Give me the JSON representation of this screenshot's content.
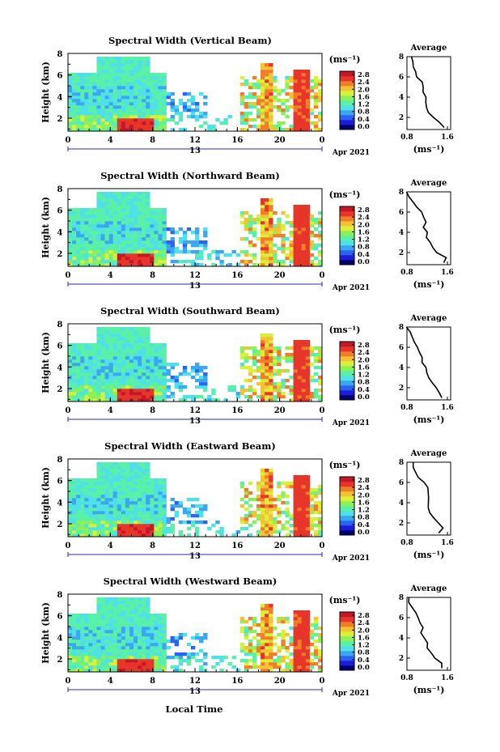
{
  "figure": {
    "xlabel": "Local Time",
    "date_label": "Apr 2021",
    "day_label": "13",
    "colorbar_unit": "(ms⁻¹)",
    "avg_title": "Average",
    "avg_xlabel": "(ms⁻¹)"
  },
  "chart_data": [
    {
      "type": "heatmap",
      "title": "Spectral Width (Vertical Beam)",
      "ylabel": "Height (km)",
      "x_ticks": [
        "0",
        "4",
        "8",
        "12",
        "16",
        "20",
        "0"
      ],
      "y_ticks": [
        "2",
        "4",
        "6",
        "8"
      ],
      "xlim": [
        0,
        24
      ],
      "ylim": [
        0.8,
        8
      ],
      "colorbar_ticks": [
        "0.0",
        "0.4",
        "0.8",
        "1.2",
        "1.6",
        "2.0",
        "2.4",
        "2.8"
      ],
      "avg_profile": {
        "x_ticks": [
          "0.8",
          "1.6"
        ],
        "xlim": [
          0.8,
          1.6
        ],
        "y_ticks": [
          "2",
          "4",
          "6",
          "8"
        ],
        "height": [
          1.0,
          1.5,
          2.0,
          2.5,
          3.0,
          3.5,
          4.0,
          4.5,
          5.0,
          5.5,
          6.0,
          6.5,
          7.0,
          7.5,
          8.0
        ],
        "value": [
          1.55,
          1.45,
          1.3,
          1.2,
          1.2,
          1.15,
          1.15,
          1.1,
          1.15,
          1.1,
          1.0,
          0.95,
          0.95,
          0.9,
          0.9
        ]
      }
    },
    {
      "type": "heatmap",
      "title": "Spectral Width (Northward Beam)",
      "ylabel": "Height (km)",
      "x_ticks": [
        "0",
        "4",
        "8",
        "12",
        "16",
        "20",
        "0"
      ],
      "y_ticks": [
        "2",
        "4",
        "6",
        "8"
      ],
      "xlim": [
        0,
        24
      ],
      "ylim": [
        0.8,
        8
      ],
      "colorbar_ticks": [
        "0.0",
        "0.4",
        "0.8",
        "1.2",
        "1.6",
        "2.0",
        "2.4",
        "2.8"
      ],
      "avg_profile": {
        "x_ticks": [
          "0.8",
          "1.6"
        ],
        "xlim": [
          0.8,
          1.6
        ],
        "y_ticks": [
          "2",
          "4",
          "6",
          "8"
        ],
        "height": [
          1.0,
          1.5,
          2.0,
          2.5,
          3.0,
          3.5,
          4.0,
          4.5,
          5.0,
          5.5,
          6.0,
          6.5,
          7.0,
          7.5,
          8.0
        ],
        "value": [
          1.5,
          1.55,
          1.4,
          1.3,
          1.25,
          1.2,
          1.2,
          1.15,
          1.2,
          1.15,
          1.1,
          1.0,
          0.9,
          0.85,
          0.8
        ]
      }
    },
    {
      "type": "heatmap",
      "title": "Spectral Width (Southward Beam)",
      "ylabel": "Height (km)",
      "x_ticks": [
        "0",
        "4",
        "8",
        "12",
        "16",
        "20",
        "0"
      ],
      "y_ticks": [
        "2",
        "4",
        "6",
        "8"
      ],
      "xlim": [
        0,
        24
      ],
      "ylim": [
        0.8,
        8
      ],
      "colorbar_ticks": [
        "0.0",
        "0.4",
        "0.8",
        "1.2",
        "1.6",
        "2.0",
        "2.4",
        "2.8"
      ],
      "avg_profile": {
        "x_ticks": [
          "0.8",
          "1.6"
        ],
        "xlim": [
          0.8,
          1.6
        ],
        "y_ticks": [
          "2",
          "4",
          "6",
          "8"
        ],
        "height": [
          1.0,
          1.5,
          2.0,
          2.5,
          3.0,
          3.5,
          4.0,
          4.5,
          5.0,
          5.5,
          6.0,
          6.5,
          7.0,
          7.5,
          8.0
        ],
        "value": [
          1.5,
          1.45,
          1.35,
          1.3,
          1.25,
          1.2,
          1.15,
          1.1,
          1.1,
          1.05,
          1.0,
          0.95,
          0.9,
          0.85,
          0.8
        ]
      }
    },
    {
      "type": "heatmap",
      "title": "Spectral Width (Eastward Beam)",
      "ylabel": "Height (km)",
      "x_ticks": [
        "0",
        "4",
        "8",
        "12",
        "16",
        "20",
        "0"
      ],
      "y_ticks": [
        "2",
        "4",
        "6",
        "8"
      ],
      "xlim": [
        0,
        24
      ],
      "ylim": [
        0.8,
        8
      ],
      "colorbar_ticks": [
        "0.0",
        "0.4",
        "0.8",
        "1.2",
        "1.6",
        "2.0",
        "2.4",
        "2.8"
      ],
      "avg_profile": {
        "x_ticks": [
          "0.8",
          "1.6"
        ],
        "xlim": [
          0.8,
          1.6
        ],
        "y_ticks": [
          "2",
          "4",
          "6",
          "8"
        ],
        "height": [
          1.0,
          1.5,
          2.0,
          2.5,
          3.0,
          3.5,
          4.0,
          4.5,
          5.0,
          5.5,
          6.0,
          6.5,
          7.0,
          7.5,
          8.0
        ],
        "value": [
          1.45,
          1.5,
          1.4,
          1.3,
          1.25,
          1.25,
          1.2,
          1.2,
          1.2,
          1.2,
          1.15,
          1.05,
          1.0,
          0.95,
          0.9
        ]
      }
    },
    {
      "type": "heatmap",
      "title": "Spectral Width (Westward Beam)",
      "ylabel": "Height (km)",
      "x_ticks": [
        "0",
        "4",
        "8",
        "12",
        "16",
        "20",
        "0"
      ],
      "y_ticks": [
        "2",
        "4",
        "6",
        "8"
      ],
      "xlim": [
        0,
        24
      ],
      "ylim": [
        0.8,
        8
      ],
      "colorbar_ticks": [
        "0.0",
        "0.4",
        "0.8",
        "1.2",
        "1.6",
        "2.0",
        "2.4",
        "2.8"
      ],
      "avg_profile": {
        "x_ticks": [
          "0.8",
          "1.6"
        ],
        "xlim": [
          0.8,
          1.6
        ],
        "y_ticks": [
          "2",
          "4",
          "6",
          "8"
        ],
        "height": [
          1.0,
          1.5,
          2.0,
          2.5,
          3.0,
          3.5,
          4.0,
          4.5,
          5.0,
          5.5,
          6.0,
          6.5,
          7.0,
          7.5,
          8.0
        ],
        "value": [
          1.5,
          1.5,
          1.35,
          1.3,
          1.2,
          1.2,
          1.15,
          1.1,
          1.1,
          1.05,
          1.0,
          1.0,
          0.9,
          0.85,
          0.85
        ]
      }
    }
  ]
}
